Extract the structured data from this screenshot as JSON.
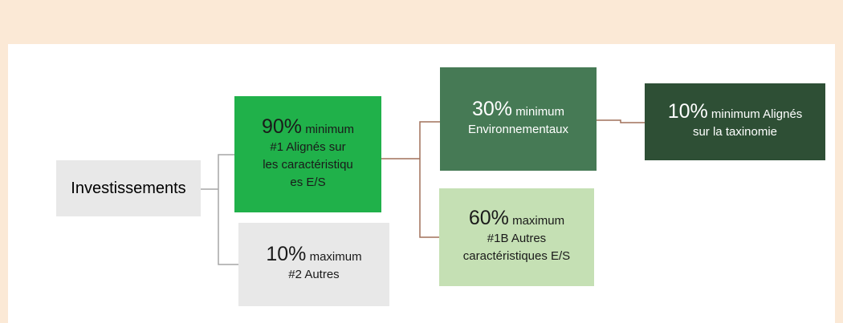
{
  "nodes": [
    {
      "label": "Investissements"
    },
    {
      "percent": "90%",
      "qualifier": "minimum",
      "lines": [
        "#1 Alignés sur",
        "les caractéristiqu",
        "es E/S"
      ]
    },
    {
      "percent": "10%",
      "qualifier": "maximum",
      "lines": [
        "#2 Autres"
      ]
    },
    {
      "percent": "30%",
      "qualifier": "minimum",
      "lines": [
        "Environnementaux"
      ]
    },
    {
      "percent": "60%",
      "qualifier": "maximum",
      "lines": [
        "#1B Autres",
        "caractéristiques E/S"
      ]
    },
    {
      "percent": "10%",
      "qualifier": "minimum Alignés",
      "lines": [
        "sur la taxinomie"
      ]
    }
  ]
}
